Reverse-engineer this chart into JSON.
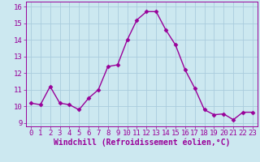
{
  "x": [
    0,
    1,
    2,
    3,
    4,
    5,
    6,
    7,
    8,
    9,
    10,
    11,
    12,
    13,
    14,
    15,
    16,
    17,
    18,
    19,
    20,
    21,
    22,
    23
  ],
  "y": [
    10.2,
    10.1,
    11.2,
    10.2,
    10.1,
    9.8,
    10.5,
    11.0,
    12.4,
    12.5,
    14.0,
    15.2,
    15.7,
    15.7,
    14.6,
    13.7,
    12.2,
    11.1,
    9.8,
    9.5,
    9.55,
    9.2,
    9.65,
    9.65
  ],
  "line_color": "#990099",
  "marker_color": "#990099",
  "bg_color": "#cce8f0",
  "grid_color": "#aaccdd",
  "xlabel": "Windchill (Refroidissement éolien,°C)",
  "xlim": [
    -0.5,
    23.5
  ],
  "ylim": [
    8.8,
    16.3
  ],
  "yticks": [
    9,
    10,
    11,
    12,
    13,
    14,
    15,
    16
  ],
  "xticks": [
    0,
    1,
    2,
    3,
    4,
    5,
    6,
    7,
    8,
    9,
    10,
    11,
    12,
    13,
    14,
    15,
    16,
    17,
    18,
    19,
    20,
    21,
    22,
    23
  ],
  "tick_label_color": "#990099",
  "xlabel_color": "#990099",
  "xlabel_fontsize": 7,
  "tick_fontsize": 6.5,
  "line_width": 1.0,
  "marker_size": 2.5
}
